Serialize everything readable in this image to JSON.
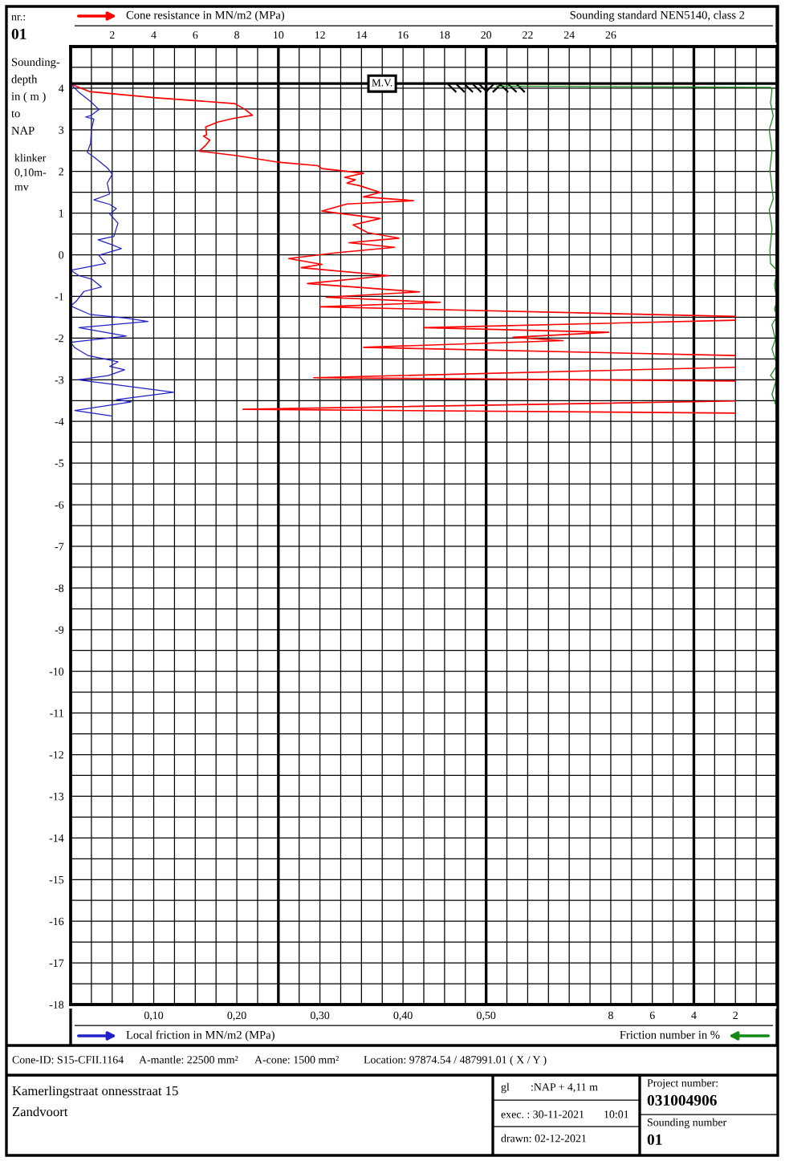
{
  "chart_data": [
    {
      "type": "line",
      "x2label": "Cone resistance in MN/m2 (MPa)",
      "xlabel": "Local friction in MN/m2 (MPa)",
      "ylabel": "Sounding-\ndepth\nin ( m )\nto\nNAP",
      "annotations": [
        "nr.:",
        "01",
        "Sounding standard NEN5140, class 2",
        "klinker\n0,10m-\nmv",
        "Cone-ID: S15-CFII.1164",
        "A-mantle: 22500 mm²",
        "A-cone: 1500 mm²",
        "Location: 97874.54 / 487991.01 ( X / Y )",
        "Kamerlingstraat onnesstraat 15",
        "Zandvoort",
        "gl",
        ":NAP + 4,11 m",
        "exec. : 30-11-2021",
        "10:01",
        "drawn: 02-12-2021",
        "Project number:",
        "031004906",
        "Sounding number",
        "01"
      ],
      "ylim": [
        -18,
        5
      ],
      "yticks": [
        -18,
        {
          "value": -17.5,
          "label": null
        },
        -17,
        {
          "value": -16.5,
          "label": null
        },
        -16,
        {
          "value": -15.5,
          "label": null
        },
        -15,
        {
          "value": -14.5,
          "label": null
        },
        -14,
        {
          "value": -13.5,
          "label": null
        },
        -13,
        {
          "value": -12.5,
          "label": null
        },
        -12,
        {
          "value": -11.5,
          "label": null
        },
        -11,
        {
          "value": -10.5,
          "label": null
        },
        -10,
        {
          "value": -9.5,
          "label": null
        },
        -9,
        {
          "value": -8.5,
          "label": null
        },
        -8,
        {
          "value": -7.5,
          "label": null
        },
        -7,
        {
          "value": -6.5,
          "label": null
        },
        -6,
        {
          "value": -5.5,
          "label": null
        },
        -5,
        {
          "value": -4.5,
          "label": null
        },
        -4,
        {
          "value": -3.5,
          "label": null
        },
        -3,
        {
          "value": -2.5,
          "label": null
        },
        -2,
        {
          "value": -1.5,
          "label": null
        },
        -1,
        {
          "value": -0.5,
          "label": null
        },
        0,
        {
          "value": 0.5,
          "label": null
        },
        1,
        {
          "value": 1.5,
          "label": null
        },
        2,
        {
          "value": 2.5,
          "label": null
        },
        3,
        {
          "value": 3.5,
          "label": null
        },
        4,
        {
          "value": 4.5,
          "label": null
        }
      ],
      "x2lim": [
        0,
        34
      ],
      "x2ticks": [
        {
          "value": 1,
          "label": null
        },
        2,
        {
          "value": 3,
          "label": null
        },
        4,
        {
          "value": 5,
          "label": null
        },
        6,
        {
          "value": 7,
          "label": null
        },
        8,
        {
          "value": 9,
          "label": null
        },
        10,
        {
          "value": 11,
          "label": null
        },
        12,
        {
          "value": 13,
          "label": null
        },
        14,
        {
          "value": 15,
          "label": null
        },
        16,
        {
          "value": 17,
          "label": null
        },
        18,
        {
          "value": 19,
          "label": null
        },
        20,
        {
          "value": 21,
          "label": null
        },
        22,
        {
          "value": 23,
          "label": null
        },
        24,
        {
          "value": 25,
          "label": null
        },
        26,
        {
          "value": 27,
          "label": null
        },
        {
          "value": 28,
          "label": null
        },
        {
          "value": 29,
          "label": null
        },
        {
          "value": 30,
          "label": null
        },
        {
          "value": 31,
          "label": null
        },
        {
          "value": 32,
          "label": null
        },
        {
          "value": 33,
          "label": null
        }
      ],
      "xlim": [
        0,
        0.85
      ],
      "xticks": [
        {
          "value": 0.1,
          "label": "0,10"
        },
        {
          "value": 0.2,
          "label": "0,20"
        },
        {
          "value": 0.3,
          "label": "0,30"
        },
        {
          "value": 0.4,
          "label": "0,40"
        },
        {
          "value": 0.5,
          "label": "0,50"
        }
      ],
      "grid": true,
      "ref_lines": [
        {
          "axis": "y",
          "value": 4.11,
          "label": "M.V."
        }
      ],
      "series": [
        {
          "axis": "x2",
          "color": "#ff0000",
          "x": [
            0,
            0.9,
            4.1,
            7.9,
            8.4,
            8.75,
            7.9,
            7.1,
            6.5,
            6.55,
            6.4,
            6.7,
            6.5,
            6.2,
            8.0,
            9.9,
            11.9,
            12.1,
            14.1,
            13.2,
            13.7,
            13.3,
            13.9,
            14.9,
            14.1,
            16.5,
            13.3,
            12.1,
            14.9,
            13.6,
            14.3,
            15.8,
            13.4,
            15.6,
            12.8,
            10.5,
            12.1,
            11.1,
            15.3,
            11.4,
            16.8,
            12.3,
            17.8,
            12.0,
            32,
            null,
            32,
            17.0,
            25.9,
            21.3,
            23.7,
            14.1,
            32,
            null,
            32,
            11.7,
            32,
            null,
            32,
            8.3,
            32
          ],
          "values": [
            4.1,
            3.92,
            3.77,
            3.63,
            3.49,
            3.35,
            3.28,
            3.19,
            3.07,
            2.88,
            2.85,
            2.75,
            2.63,
            2.49,
            2.38,
            2.23,
            2.14,
            2.07,
            1.96,
            1.86,
            1.8,
            1.72,
            1.66,
            1.5,
            1.39,
            1.3,
            1.22,
            1.05,
            0.87,
            0.72,
            0.53,
            0.4,
            0.29,
            0.18,
            0.05,
            -0.09,
            -0.23,
            -0.31,
            -0.5,
            -0.69,
            -0.89,
            -1.02,
            -1.14,
            -1.25,
            -1.48,
            null,
            -1.57,
            -1.75,
            -1.86,
            -1.98,
            -2.06,
            -2.22,
            -2.42,
            null,
            -2.7,
            -2.95,
            -3.03,
            null,
            -3.51,
            -3.71,
            -3.8
          ]
        },
        {
          "color": "#2020cc",
          "x": [
            0,
            0.01,
            0.024,
            0.034,
            0.024,
            0.018,
            0.028,
            0.025,
            0.024,
            0.02,
            0.029,
            0.045,
            0.05,
            0.044,
            0.047,
            0.028,
            0.047,
            0.055,
            0.047,
            0.057,
            0.052,
            0.033,
            0.05,
            0.061,
            0.034,
            0.042,
            0.0,
            0.01,
            0.026,
            0.037,
            0.016,
            0.007,
            0.0,
            0.023,
            0.066,
            0.093,
            0.01,
            0.067,
            0.0,
            0.005,
            0.021,
            0.057,
            0.047,
            0.065,
            0.045,
            0.009,
            0.124,
            0.055,
            0.073,
            0.005,
            0.049
          ],
          "values": [
            4.1,
            3.9,
            3.68,
            3.49,
            3.34,
            3.31,
            3.26,
            3.0,
            2.68,
            2.46,
            2.33,
            2.07,
            1.93,
            1.72,
            1.46,
            1.32,
            1.21,
            1.11,
            0.98,
            0.76,
            0.44,
            0.36,
            0.24,
            0.15,
            -0.01,
            -0.21,
            -0.37,
            -0.5,
            -0.59,
            -0.77,
            -0.88,
            -1.11,
            -1.23,
            -1.43,
            -1.52,
            -1.6,
            -1.75,
            -1.95,
            -2.1,
            -2.23,
            -2.42,
            -2.57,
            -2.68,
            -2.76,
            -2.9,
            -3.0,
            -3.3,
            -3.48,
            -3.53,
            -3.74,
            -3.87
          ]
        }
      ]
    },
    {
      "type": "line",
      "xlabel": "Friction number in %",
      "xlim": [
        34,
        0
      ],
      "xticks": [
        8,
        6,
        4,
        2
      ],
      "ylim": [
        -18,
        5
      ],
      "tick_labels": "x",
      "series": [
        {
          "color": "#168a16",
          "x": [
            13.5,
            0.3,
            0.24,
            0.31,
            0.18,
            0.37,
            0.24,
            0.34,
            0.18,
            0.37,
            0.24,
            0.34,
            0.31,
            0.0,
            0.12,
            0.0,
            0.12,
            0.0,
            0.24,
            0.08,
            0.24,
            0.0,
            0.31,
            0.05,
            0.24,
            0.05,
            0.05
          ],
          "values": [
            4.05,
            4.02,
            3.97,
            3.65,
            3.33,
            3.0,
            2.49,
            2.04,
            1.34,
            1.08,
            0.63,
            0.11,
            -0.21,
            -0.37,
            -0.72,
            -1.11,
            -1.3,
            -1.48,
            -1.68,
            -2.04,
            -2.26,
            -2.65,
            -2.9,
            -3.03,
            -3.35,
            -3.61,
            -3.83
          ]
        }
      ]
    }
  ]
}
